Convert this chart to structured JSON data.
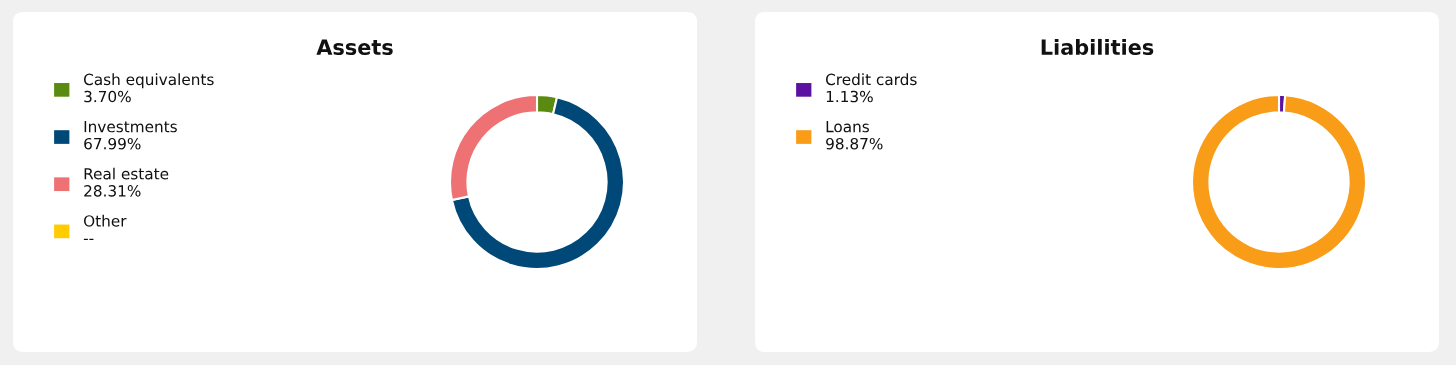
{
  "chart_data": [
    {
      "type": "donut",
      "title": "Assets",
      "legend": "left",
      "categories": [
        "Cash equivalents",
        "Investments",
        "Real estate",
        "Other"
      ],
      "values": [
        3.7,
        67.99,
        28.31,
        null
      ],
      "colors": [
        "#5a8a0f",
        "#004878",
        "#ee7173",
        "#ffcc00"
      ],
      "value_labels": [
        "3.70%",
        "67.99%",
        "28.31%",
        "--"
      ]
    },
    {
      "type": "donut",
      "title": "Liabilities",
      "legend": "left",
      "categories": [
        "Credit cards",
        "Loans"
      ],
      "values": [
        1.13,
        98.87
      ],
      "colors": [
        "#5c12a0",
        "#f99c17"
      ],
      "value_labels": [
        "1.13%",
        "98.87%"
      ]
    }
  ]
}
